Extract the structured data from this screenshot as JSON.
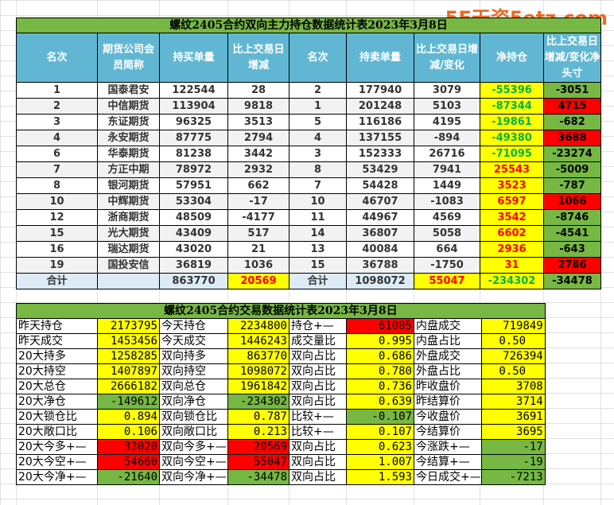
{
  "watermark": "5E天资5etz.com",
  "position_table": {
    "title": "螺纹2405合约双向主力持仓数据统计表2023年3月8日",
    "headers": [
      "名次",
      "期货公司会员简称",
      "持买单量",
      "比上交易日增减",
      "名次",
      "持卖单量",
      "比上交易日增减/变化",
      "净持仓",
      "比上交易日增减/变化净头寸"
    ],
    "rows": [
      {
        "buy_rank": "1",
        "company": "国泰君安",
        "buy_volume": "122544",
        "buy_change": "28",
        "sell_rank": "2",
        "sell_volume": "177940",
        "sell_change": "3079",
        "net": "-55396",
        "net_change": "-3051"
      },
      {
        "buy_rank": "2",
        "company": "中信期货",
        "buy_volume": "113904",
        "buy_change": "9818",
        "sell_rank": "1",
        "sell_volume": "201248",
        "sell_change": "5103",
        "net": "-87344",
        "net_change": "4715"
      },
      {
        "buy_rank": "3",
        "company": "东证期货",
        "buy_volume": "96325",
        "buy_change": "3513",
        "sell_rank": "5",
        "sell_volume": "116186",
        "sell_change": "4195",
        "net": "-19861",
        "net_change": "-682"
      },
      {
        "buy_rank": "4",
        "company": "永安期货",
        "buy_volume": "87775",
        "buy_change": "2794",
        "sell_rank": "4",
        "sell_volume": "137155",
        "sell_change": "-894",
        "net": "-49380",
        "net_change": "3688"
      },
      {
        "buy_rank": "6",
        "company": "华泰期货",
        "buy_volume": "81238",
        "buy_change": "3442",
        "sell_rank": "3",
        "sell_volume": "152333",
        "sell_change": "26716",
        "net": "-71095",
        "net_change": "-23274"
      },
      {
        "buy_rank": "7",
        "company": "方正中期",
        "buy_volume": "78972",
        "buy_change": "2932",
        "sell_rank": "8",
        "sell_volume": "53429",
        "sell_change": "7941",
        "net": "25543",
        "net_change": "-5009"
      },
      {
        "buy_rank": "8",
        "company": "银河期货",
        "buy_volume": "57951",
        "buy_change": "662",
        "sell_rank": "7",
        "sell_volume": "54428",
        "sell_change": "1449",
        "net": "3523",
        "net_change": "-787"
      },
      {
        "buy_rank": "10",
        "company": "中辉期货",
        "buy_volume": "53304",
        "buy_change": "-17",
        "sell_rank": "10",
        "sell_volume": "46707",
        "sell_change": "-1083",
        "net": "6597",
        "net_change": "1066"
      },
      {
        "buy_rank": "12",
        "company": "浙商期货",
        "buy_volume": "48509",
        "buy_change": "-4177",
        "sell_rank": "11",
        "sell_volume": "44967",
        "sell_change": "4569",
        "net": "3542",
        "net_change": "-8746"
      },
      {
        "buy_rank": "15",
        "company": "光大期货",
        "buy_volume": "43409",
        "buy_change": "517",
        "sell_rank": "14",
        "sell_volume": "36807",
        "sell_change": "5058",
        "net": "6602",
        "net_change": "-4541"
      },
      {
        "buy_rank": "16",
        "company": "瑞达期货",
        "buy_volume": "43020",
        "buy_change": "21",
        "sell_rank": "13",
        "sell_volume": "40084",
        "sell_change": "664",
        "net": "2936",
        "net_change": "-643"
      },
      {
        "buy_rank": "19",
        "company": "国投安信",
        "buy_volume": "36819",
        "buy_change": "1036",
        "sell_rank": "15",
        "sell_volume": "36788",
        "sell_change": "-1750",
        "net": "31",
        "net_change": "2786"
      }
    ],
    "total": {
      "label": "合计",
      "buy_volume": "863770",
      "buy_change": "20569",
      "label2": "合计",
      "sell_volume": "1098072",
      "sell_change": "55047",
      "net": "-234302",
      "net_change": "-34478"
    }
  },
  "trade_table": {
    "title": "螺纹2405合约交易数据统计表2023年3月8日",
    "rows": [
      [
        {
          "t": "昨天持仓"
        },
        {
          "t": "2173795",
          "c": "y"
        },
        {
          "t": "今天持仓"
        },
        {
          "t": "2234800",
          "c": "y"
        },
        {
          "t": "持仓+—"
        },
        {
          "t": "61005",
          "c": "r"
        },
        {
          "t": "内盘成交"
        },
        {
          "t": "719849",
          "c": "y"
        }
      ],
      [
        {
          "t": "昨天成交"
        },
        {
          "t": "1453456",
          "c": "y"
        },
        {
          "t": "今天成交"
        },
        {
          "t": "1446243",
          "c": "y"
        },
        {
          "t": "成交量比"
        },
        {
          "t": "0.995",
          "c": "y"
        },
        {
          "t": "内盘占比"
        },
        {
          "t": "0.50",
          "c": "y"
        }
      ],
      [
        {
          "t": "20大持多"
        },
        {
          "t": "1258285",
          "c": "y"
        },
        {
          "t": "双向持多"
        },
        {
          "t": "863770",
          "c": "y"
        },
        {
          "t": "双向占比"
        },
        {
          "t": "0.686",
          "c": "y"
        },
        {
          "t": "外盘成交"
        },
        {
          "t": "726394",
          "c": "y"
        }
      ],
      [
        {
          "t": "20大持空"
        },
        {
          "t": "1407897",
          "c": "y"
        },
        {
          "t": "双向持空"
        },
        {
          "t": "1098072",
          "c": "y"
        },
        {
          "t": "双向占比"
        },
        {
          "t": "0.780",
          "c": "y"
        },
        {
          "t": "外盘占比"
        },
        {
          "t": "0.50",
          "c": "y"
        }
      ],
      [
        {
          "t": "20大总仓"
        },
        {
          "t": "2666182",
          "c": "y"
        },
        {
          "t": "双向总仓"
        },
        {
          "t": "1961842",
          "c": "y"
        },
        {
          "t": "双向占比"
        },
        {
          "t": "0.736",
          "c": "y"
        },
        {
          "t": "昨收盘价"
        },
        {
          "t": "3708",
          "c": "y"
        }
      ],
      [
        {
          "t": "20大净仓"
        },
        {
          "t": "-149612",
          "c": "g"
        },
        {
          "t": "双向净仓"
        },
        {
          "t": "-234302",
          "c": "g"
        },
        {
          "t": "双向占比"
        },
        {
          "t": "0.639",
          "c": "y"
        },
        {
          "t": "昨结算价"
        },
        {
          "t": "3714",
          "c": "y"
        }
      ],
      [
        {
          "t": "20大锁仓比"
        },
        {
          "t": "0.894",
          "c": "y"
        },
        {
          "t": "双向锁仓比"
        },
        {
          "t": "0.787",
          "c": "y"
        },
        {
          "t": "比较+—"
        },
        {
          "t": "-0.107",
          "c": "g"
        },
        {
          "t": "今收盘价"
        },
        {
          "t": "3691",
          "c": "y"
        }
      ],
      [
        {
          "t": "20大敞口比"
        },
        {
          "t": "0.106",
          "c": "y"
        },
        {
          "t": "双向敞口比"
        },
        {
          "t": "0.213",
          "c": "y"
        },
        {
          "t": "比较+—"
        },
        {
          "t": "0.107",
          "c": "y"
        },
        {
          "t": "今结算价"
        },
        {
          "t": "3695",
          "c": "y"
        }
      ],
      [
        {
          "t": "20大今多+—"
        },
        {
          "t": "33020",
          "c": "r"
        },
        {
          "t": "双向今多+—"
        },
        {
          "t": "20569",
          "c": "r"
        },
        {
          "t": "双向占比"
        },
        {
          "t": "0.623",
          "c": "y"
        },
        {
          "t": "今涨跌+—"
        },
        {
          "t": "-17",
          "c": "g"
        }
      ],
      [
        {
          "t": "20大今空+—"
        },
        {
          "t": "54660",
          "c": "r"
        },
        {
          "t": "双向今空+—"
        },
        {
          "t": "55047",
          "c": "r"
        },
        {
          "t": "双向占比"
        },
        {
          "t": "1.007",
          "c": "y"
        },
        {
          "t": "今结算+—"
        },
        {
          "t": "-19",
          "c": "g"
        }
      ],
      [
        {
          "t": "20大今净+—"
        },
        {
          "t": "-21640",
          "c": "g"
        },
        {
          "t": "双向今净+—"
        },
        {
          "t": "-34478",
          "c": "g"
        },
        {
          "t": "双向占比"
        },
        {
          "t": "1.593",
          "c": "y"
        },
        {
          "t": "今日成交+—"
        },
        {
          "t": "-7213",
          "c": "g"
        }
      ]
    ]
  },
  "colors": {
    "title_green": "#76b843",
    "header_blue": "#61b7d3",
    "highlight_yellow": "#ffff00",
    "increase_red": "#ff0000",
    "decrease_green": "#76b843",
    "negative_text_green": "#00b050",
    "total_row_bg": "#ddebf7"
  }
}
